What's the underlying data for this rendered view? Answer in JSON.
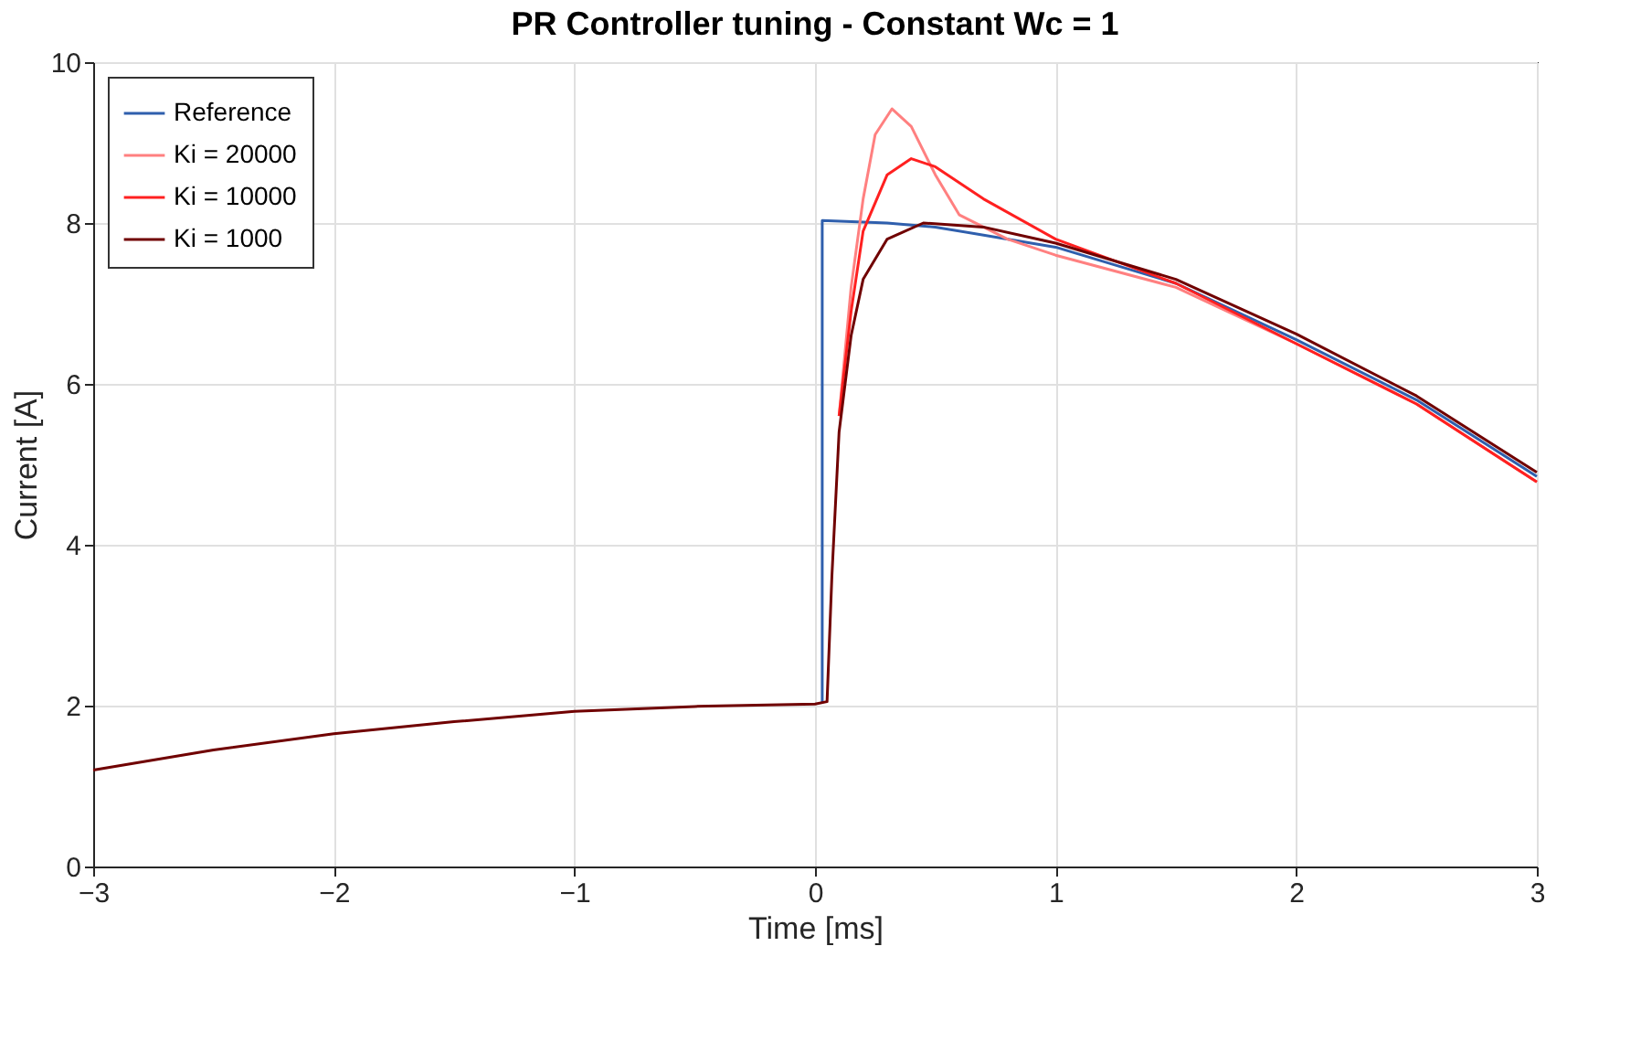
{
  "chart_data": {
    "type": "line",
    "title": "PR Controller tuning - Constant Wc = 1",
    "xlabel": "Time [ms]",
    "ylabel": "Current [A]",
    "xlim": [
      -3,
      3
    ],
    "xticks": [
      -3,
      -2,
      -1,
      0,
      1,
      2,
      3
    ],
    "ylim": [
      0,
      10
    ],
    "yticks": [
      0,
      2,
      4,
      6,
      8,
      10
    ],
    "grid": true,
    "legend": "top left",
    "line_style": "solid",
    "marker": "none",
    "series": [
      {
        "name": "Reference",
        "color": "#2f5fad",
        "x": [
          0.03,
          0.03,
          0.3,
          0.5,
          1,
          1.5,
          2,
          2.5,
          3
        ],
        "values": [
          2.03,
          8.03,
          8.0,
          7.95,
          7.7,
          7.25,
          6.55,
          5.8,
          4.85
        ]
      },
      {
        "name": "Ki = 20000",
        "color": "#ff8080",
        "x": [
          0.1,
          0.15,
          0.2,
          0.25,
          0.32,
          0.4,
          0.5,
          0.6,
          0.8,
          1,
          1.5,
          2,
          2.5,
          3
        ],
        "values": [
          5.6,
          7.2,
          8.3,
          9.1,
          9.42,
          9.2,
          8.6,
          8.1,
          7.8,
          7.6,
          7.2,
          6.5,
          5.75,
          4.78
        ]
      },
      {
        "name": "Ki = 10000",
        "color": "#ff2020",
        "x": [
          0.1,
          0.15,
          0.2,
          0.3,
          0.4,
          0.5,
          0.7,
          1,
          1.5,
          2,
          2.5,
          3
        ],
        "values": [
          5.6,
          6.9,
          7.9,
          8.6,
          8.8,
          8.7,
          8.3,
          7.8,
          7.25,
          6.5,
          5.75,
          4.78
        ]
      },
      {
        "name": "Ki = 1000",
        "color": "#700000",
        "x": [
          -3,
          -2.5,
          -2,
          -1.5,
          -1,
          -0.5,
          0,
          0.05,
          0.07,
          0.1,
          0.15,
          0.2,
          0.3,
          0.45,
          0.7,
          1,
          1.5,
          2,
          2.5,
          3
        ],
        "values": [
          1.2,
          1.45,
          1.65,
          1.8,
          1.93,
          1.99,
          2.02,
          2.05,
          3.6,
          5.4,
          6.6,
          7.3,
          7.8,
          8.0,
          7.95,
          7.75,
          7.3,
          6.62,
          5.85,
          4.9
        ]
      }
    ]
  }
}
